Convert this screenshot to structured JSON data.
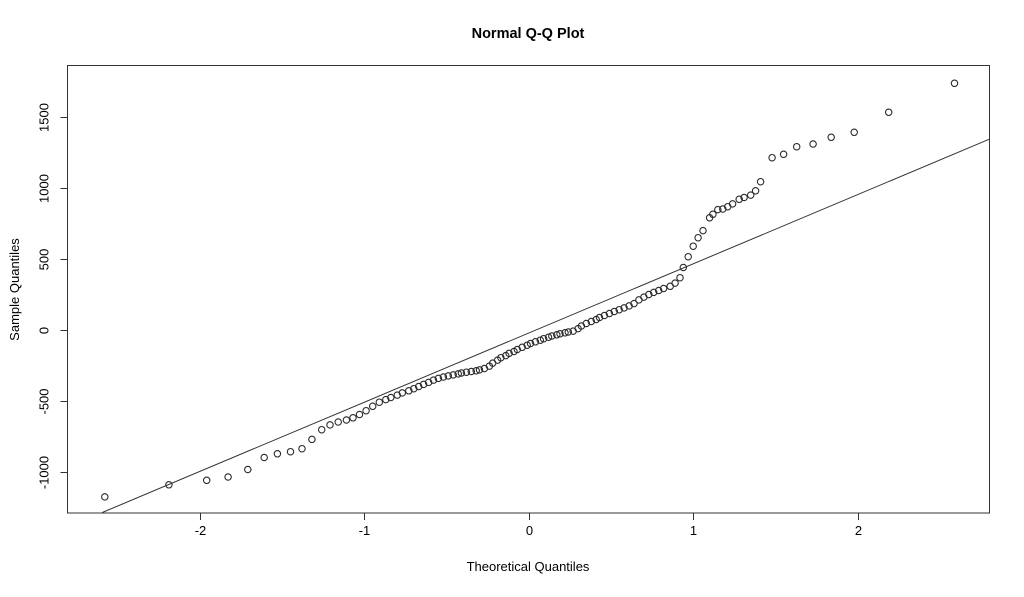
{
  "chart_data": {
    "type": "scatter",
    "title": "Normal Q-Q Plot",
    "xlabel": "Theoretical Quantiles",
    "ylabel": "Sample Quantiles",
    "grid": false,
    "legend": "none",
    "marker": "open-circle",
    "xlim": [
      -2.81,
      2.8
    ],
    "ylim": [
      -1285,
      1866
    ],
    "x_ticks": [
      {
        "value": -2,
        "label": "-2"
      },
      {
        "value": -1,
        "label": "-1"
      },
      {
        "value": 0,
        "label": "0"
      },
      {
        "value": 1,
        "label": "1"
      },
      {
        "value": 2,
        "label": "2"
      }
    ],
    "y_ticks": [
      {
        "value": -1000,
        "label": "-1000"
      },
      {
        "value": -500,
        "label": "-500"
      },
      {
        "value": 0,
        "label": "0"
      },
      {
        "value": 500,
        "label": "500"
      },
      {
        "value": 1000,
        "label": "1000"
      },
      {
        "value": 1500,
        "label": "1500"
      }
    ],
    "reference_line": {
      "slope": 487,
      "intercept": -21
    },
    "colors": {
      "points": "#2b2b2b",
      "line": "#333333",
      "box": "#333333",
      "text": "#000000"
    },
    "points": [
      [
        -2.58,
        -1175
      ],
      [
        -2.19,
        -1090
      ],
      [
        -1.96,
        -1058
      ],
      [
        -1.83,
        -1035
      ],
      [
        -1.71,
        -982
      ],
      [
        -1.61,
        -898
      ],
      [
        -1.53,
        -872
      ],
      [
        -1.45,
        -857
      ],
      [
        -1.38,
        -836
      ],
      [
        -1.32,
        -770
      ],
      [
        -1.26,
        -702
      ],
      [
        -1.21,
        -668
      ],
      [
        -1.16,
        -648
      ],
      [
        -1.11,
        -634
      ],
      [
        -1.07,
        -618
      ],
      [
        -1.03,
        -595
      ],
      [
        -0.99,
        -568
      ],
      [
        -0.95,
        -537
      ],
      [
        -0.91,
        -508
      ],
      [
        -0.87,
        -490
      ],
      [
        -0.84,
        -475
      ],
      [
        -0.8,
        -458
      ],
      [
        -0.77,
        -443
      ],
      [
        -0.73,
        -428
      ],
      [
        -0.7,
        -413
      ],
      [
        -0.67,
        -398
      ],
      [
        -0.64,
        -383
      ],
      [
        -0.61,
        -369
      ],
      [
        -0.58,
        -353
      ],
      [
        -0.55,
        -341
      ],
      [
        -0.52,
        -331
      ],
      [
        -0.49,
        -323
      ],
      [
        -0.46,
        -316
      ],
      [
        -0.43,
        -309
      ],
      [
        -0.41,
        -303
      ],
      [
        -0.38,
        -297
      ],
      [
        -0.35,
        -292
      ],
      [
        -0.32,
        -287
      ],
      [
        -0.3,
        -281
      ],
      [
        -0.27,
        -271
      ],
      [
        -0.24,
        -254
      ],
      [
        -0.22,
        -233
      ],
      [
        -0.19,
        -212
      ],
      [
        -0.17,
        -195
      ],
      [
        -0.14,
        -180
      ],
      [
        -0.12,
        -165
      ],
      [
        -0.09,
        -151
      ],
      [
        -0.07,
        -137
      ],
      [
        -0.04,
        -122
      ],
      [
        -0.01,
        -107
      ],
      [
        0.01,
        -95
      ],
      [
        0.04,
        -83
      ],
      [
        0.07,
        -72
      ],
      [
        0.09,
        -61
      ],
      [
        0.12,
        -51
      ],
      [
        0.14,
        -42
      ],
      [
        0.17,
        -34
      ],
      [
        0.19,
        -27
      ],
      [
        0.22,
        -20
      ],
      [
        0.24,
        -14
      ],
      [
        0.27,
        -8
      ],
      [
        0.3,
        10
      ],
      [
        0.32,
        28
      ],
      [
        0.35,
        46
      ],
      [
        0.38,
        60
      ],
      [
        0.41,
        74
      ],
      [
        0.43,
        88
      ],
      [
        0.46,
        102
      ],
      [
        0.49,
        116
      ],
      [
        0.52,
        130
      ],
      [
        0.55,
        143
      ],
      [
        0.58,
        156
      ],
      [
        0.61,
        170
      ],
      [
        0.64,
        186
      ],
      [
        0.67,
        212
      ],
      [
        0.7,
        232
      ],
      [
        0.73,
        250
      ],
      [
        0.76,
        265
      ],
      [
        0.79,
        278
      ],
      [
        0.82,
        292
      ],
      [
        0.86,
        308
      ],
      [
        0.89,
        330
      ],
      [
        0.92,
        368
      ],
      [
        0.94,
        440
      ],
      [
        0.97,
        516
      ],
      [
        1.0,
        590
      ],
      [
        1.03,
        650
      ],
      [
        1.06,
        700
      ],
      [
        1.1,
        790
      ],
      [
        1.12,
        815
      ],
      [
        1.15,
        848
      ],
      [
        1.18,
        852
      ],
      [
        1.21,
        868
      ],
      [
        1.24,
        888
      ],
      [
        1.28,
        920
      ],
      [
        1.31,
        933
      ],
      [
        1.35,
        950
      ],
      [
        1.38,
        980
      ],
      [
        1.41,
        1044
      ],
      [
        1.48,
        1213
      ],
      [
        1.55,
        1237
      ],
      [
        1.63,
        1291
      ],
      [
        1.73,
        1310
      ],
      [
        1.84,
        1357
      ],
      [
        1.98,
        1392
      ],
      [
        2.19,
        1533
      ],
      [
        2.59,
        1737
      ]
    ]
  }
}
